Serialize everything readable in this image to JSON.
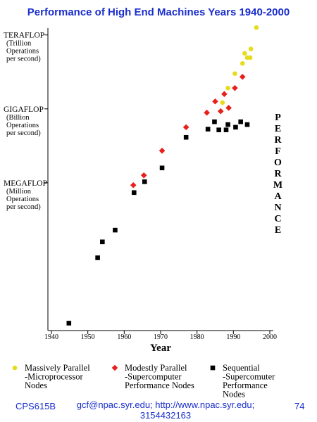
{
  "chart_data": {
    "type": "scatter",
    "title": "Performance of High End Machines Years 1940-2000",
    "xlabel": "Year",
    "ylabel": "PERFORMANCE",
    "xlim": [
      1940,
      2000
    ],
    "xticks": [
      1940,
      1950,
      1960,
      1970,
      1980,
      1990,
      2000
    ],
    "ylim": [
      1,
      3000000000000
    ],
    "log_y": true,
    "yticks": [
      {
        "value": 1000000000000,
        "label": "TERAFLOP"
      },
      {
        "value": 1000000000,
        "label": "GIGAFLOP"
      },
      {
        "value": 1000000,
        "label": "MEGAFLOP"
      }
    ],
    "ytick_notes": [
      "(Trillion\nOperations\nper second)",
      "(Billion\nOperations\nper second)",
      "(Million\nOperations\nper second)"
    ],
    "series": [
      {
        "name": "Massively Parallel\n-Microprocessor\nNodes",
        "color": "#e6dc1e",
        "marker": "circle",
        "x": [
          1987,
          1988.5,
          1990.4,
          1992.5,
          1993.8,
          1994.6,
          1994.8,
          1993.1,
          1996.3
        ],
        "values": [
          1800000000,
          7000000000,
          27000000000,
          70000000000,
          120000000000,
          120000000000,
          270000000000,
          180000000000,
          2000000000000
        ]
      },
      {
        "name": "Modestly Parallel\n-Supercomputer\nPerformance Nodes",
        "color": "#e8201c",
        "marker": "diamond",
        "x": [
          1962.5,
          1965.4,
          1970.4,
          1977,
          1982.7,
          1985,
          1986.5,
          1987.5,
          1988.7,
          1990.4,
          1992.5
        ],
        "values": [
          800000,
          2000000,
          20000000,
          180000000,
          700000000,
          2000000000,
          800000000,
          4000000000,
          1100000000,
          7000000000,
          20000000000
        ]
      },
      {
        "name": "Sequential\n-Supercomuter\nPerformance\nNodes",
        "color": "#000000",
        "marker": "square",
        "x": [
          1944.8,
          1952.7,
          1954,
          1957.5,
          1962.7,
          1965.6,
          1970.4,
          1977,
          1983,
          1984.8,
          1986,
          1988,
          1988.5,
          1990.6,
          1992,
          1993.8
        ],
        "values": [
          2,
          900,
          4000,
          12000,
          400000,
          1100000,
          4000000,
          70000000,
          150000000,
          300000000,
          140000000,
          140000000,
          230000000,
          180000000,
          300000000,
          230000000
        ]
      }
    ],
    "footer": {
      "left": "CPS615B",
      "center": "gcf@npac.syr.edu; http://www.npac.syr.edu;\n3154432163",
      "right": "74"
    }
  }
}
